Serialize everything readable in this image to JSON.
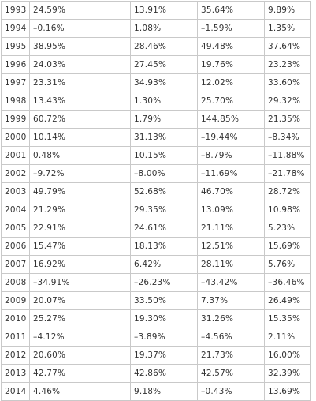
{
  "rows": [
    {
      "year": "1993",
      "v": [
        "24.59%",
        "13.91%",
        "35.64%",
        "9.89%"
      ]
    },
    {
      "year": "1994",
      "v": [
        "–0.16%",
        "1.08%",
        "–1.59%",
        "1.35%"
      ]
    },
    {
      "year": "1995",
      "v": [
        "38.95%",
        "28.46%",
        "49.48%",
        "37.64%"
      ]
    },
    {
      "year": "1996",
      "v": [
        "24.03%",
        "27.45%",
        "19.76%",
        "23.23%"
      ]
    },
    {
      "year": "1997",
      "v": [
        "23.31%",
        "34.93%",
        "12.02%",
        "33.60%"
      ]
    },
    {
      "year": "1998",
      "v": [
        "13.43%",
        "1.30%",
        "25.70%",
        "29.32%"
      ]
    },
    {
      "year": "1999",
      "v": [
        "60.72%",
        "1.79%",
        "144.85%",
        "21.35%"
      ]
    },
    {
      "year": "2000",
      "v": [
        "10.14%",
        "31.13%",
        "–19.44%",
        "–8.34%"
      ]
    },
    {
      "year": "2001",
      "v": [
        "0.48%",
        "10.15%",
        "–8.79%",
        "–11.88%"
      ]
    },
    {
      "year": "2002",
      "v": [
        "–9.72%",
        "–8.00%",
        "–11.69%",
        "–21.78%"
      ]
    },
    {
      "year": "2003",
      "v": [
        "49.79%",
        "52.68%",
        "46.70%",
        "28.72%"
      ]
    },
    {
      "year": "2004",
      "v": [
        "21.29%",
        "29.35%",
        "13.09%",
        "10.98%"
      ]
    },
    {
      "year": "2005",
      "v": [
        "22.91%",
        "24.61%",
        "21.11%",
        "5.23%"
      ]
    },
    {
      "year": "2006",
      "v": [
        "15.47%",
        "18.13%",
        "12.51%",
        "15.69%"
      ]
    },
    {
      "year": "2007",
      "v": [
        "16.92%",
        "6.42%",
        "28.11%",
        "5.76%"
      ]
    },
    {
      "year": "2008",
      "v": [
        "–34.91%",
        "–26.23%",
        "–43.42%",
        "–36.46%"
      ]
    },
    {
      "year": "2009",
      "v": [
        "20.07%",
        "33.50%",
        "7.37%",
        "26.49%"
      ]
    },
    {
      "year": "2010",
      "v": [
        "25.27%",
        "19.30%",
        "31.26%",
        "15.35%"
      ]
    },
    {
      "year": "2011",
      "v": [
        "–4.12%",
        "–3.89%",
        "–4.56%",
        "2.11%"
      ]
    },
    {
      "year": "2012",
      "v": [
        "20.60%",
        "19.37%",
        "21.73%",
        "16.00%"
      ]
    },
    {
      "year": "2013",
      "v": [
        "42.77%",
        "42.86%",
        "42.57%",
        "32.39%"
      ]
    },
    {
      "year": "2014",
      "v": [
        "4.46%",
        "9.18%",
        "–0.43%",
        "13.69%"
      ]
    }
  ]
}
